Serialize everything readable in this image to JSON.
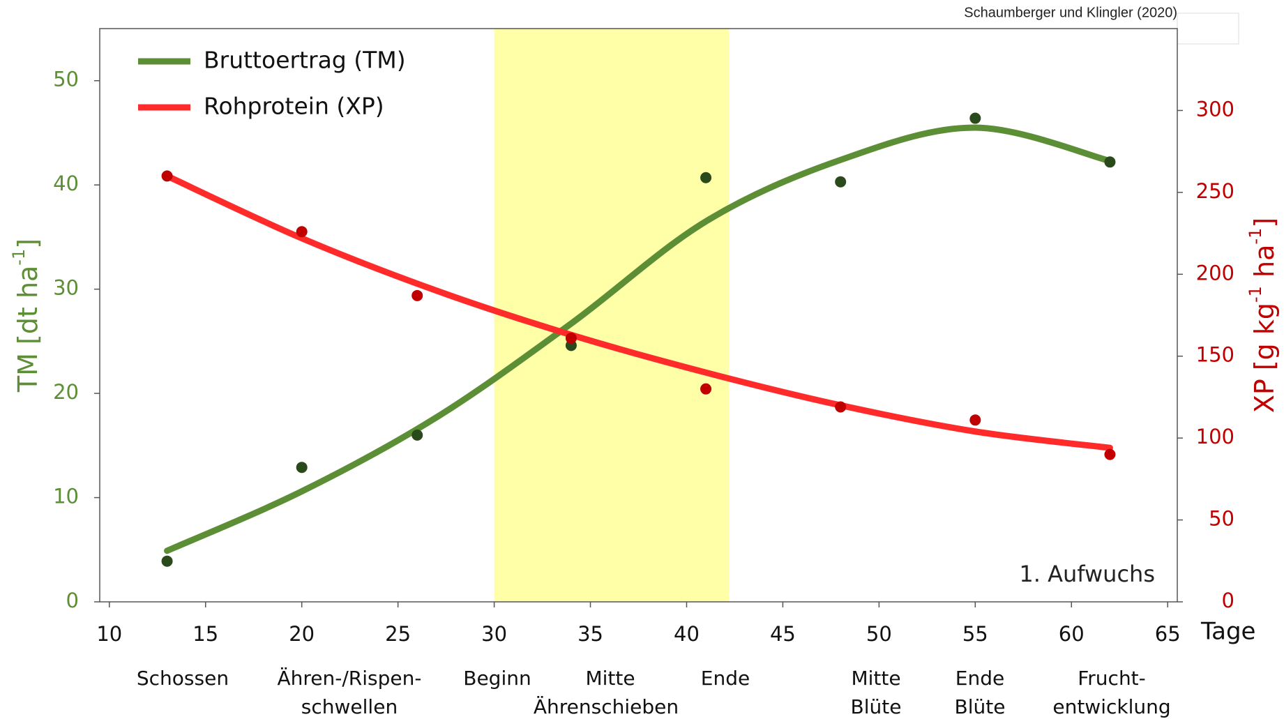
{
  "chart_data": {
    "type": "line",
    "source": "Schaumberger und Klingler (2020)",
    "annotation": "1. Aufwuchs",
    "xlabel": "Tage",
    "ylabel": [
      "TM [dt ha",
      "-1",
      "]"
    ],
    "y2label": [
      "XP [g kg",
      "-1",
      " ha",
      "-1",
      "]"
    ],
    "xlim": [
      9.5,
      65.5
    ],
    "xticks": [
      10,
      15,
      20,
      25,
      30,
      35,
      40,
      45,
      50,
      55,
      60,
      65
    ],
    "ylim": [
      0,
      55
    ],
    "yticks": [
      0,
      10,
      20,
      30,
      40,
      50
    ],
    "y2lim": [
      0,
      350
    ],
    "y2ticks": [
      0,
      50,
      100,
      150,
      200,
      250,
      300
    ],
    "grid": false,
    "legend": "upper left",
    "shaded_range": [
      30,
      42.2
    ],
    "shaded_color": "#ffffa8",
    "series": [
      {
        "name": "Bruttoertrag (TM)",
        "color": "#5c8e36",
        "point_color": "#2b4a1c",
        "x": [
          13,
          20,
          26,
          34,
          41,
          48,
          55,
          62
        ],
        "values": [
          3.9,
          12.9,
          16,
          24.6,
          40.7,
          40.3,
          46.4,
          42.2
        ],
        "trend": {
          "x": [
            13,
            20,
            27,
            34,
            41,
            48,
            55,
            62
          ],
          "values": [
            4.9,
            10.6,
            17.7,
            26.7,
            36.5,
            42.4,
            45.5,
            42.3
          ]
        }
      },
      {
        "name": "Rohprotein (XP)",
        "color": "#ff2b2b",
        "point_color": "#c00000",
        "axis": "y2",
        "x": [
          13,
          20,
          26,
          34,
          41,
          48,
          55,
          62
        ],
        "values": [
          260,
          226,
          187,
          161,
          130,
          119,
          111,
          90
        ],
        "trend": {
          "x": [
            13,
            20,
            27,
            34,
            41,
            48,
            55,
            62
          ],
          "values": [
            260,
            222,
            190,
            163,
            140,
            120,
            104,
            94
          ]
        }
      }
    ],
    "stages": [
      [
        "Schossen"
      ],
      [
        "Ähren-/Rispen-",
        "schwellen"
      ],
      [
        "Beginn"
      ],
      [
        "Mitte",
        "Ährenschieben"
      ],
      [
        "Ende"
      ],
      [
        "Mitte",
        "Blüte"
      ],
      [
        "Ende",
        "Blüte"
      ],
      [
        "Frucht-",
        "entwicklung"
      ]
    ]
  }
}
